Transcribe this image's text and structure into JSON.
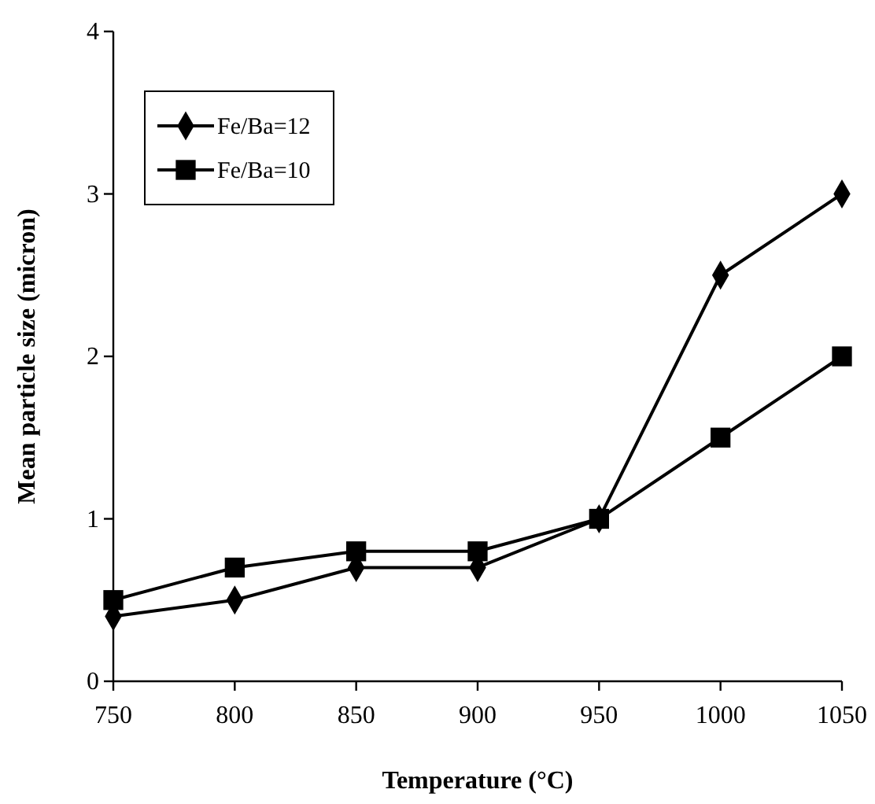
{
  "chart_data": {
    "type": "line",
    "xlabel": "Temperature (°C)",
    "ylabel": "Mean particle size (micron)",
    "x": [
      750,
      800,
      850,
      900,
      950,
      1000,
      1050
    ],
    "xlim": [
      750,
      1050
    ],
    "xticks": [
      750,
      800,
      850,
      900,
      950,
      1000,
      1050
    ],
    "ylim": [
      0,
      4
    ],
    "yticks": [
      0,
      1,
      2,
      3,
      4
    ],
    "grid": false,
    "legend": "top left",
    "line_style": "solid",
    "series": [
      {
        "name": "Fe/Ba=12",
        "color": "#000000",
        "marker": "diamond",
        "values": [
          0.4,
          0.5,
          0.7,
          0.7,
          1.0,
          2.5,
          3.0
        ]
      },
      {
        "name": "Fe/Ba=10",
        "color": "#000000",
        "marker": "square",
        "values": [
          0.5,
          0.7,
          0.8,
          0.8,
          1.0,
          1.5,
          2.0
        ]
      }
    ]
  }
}
